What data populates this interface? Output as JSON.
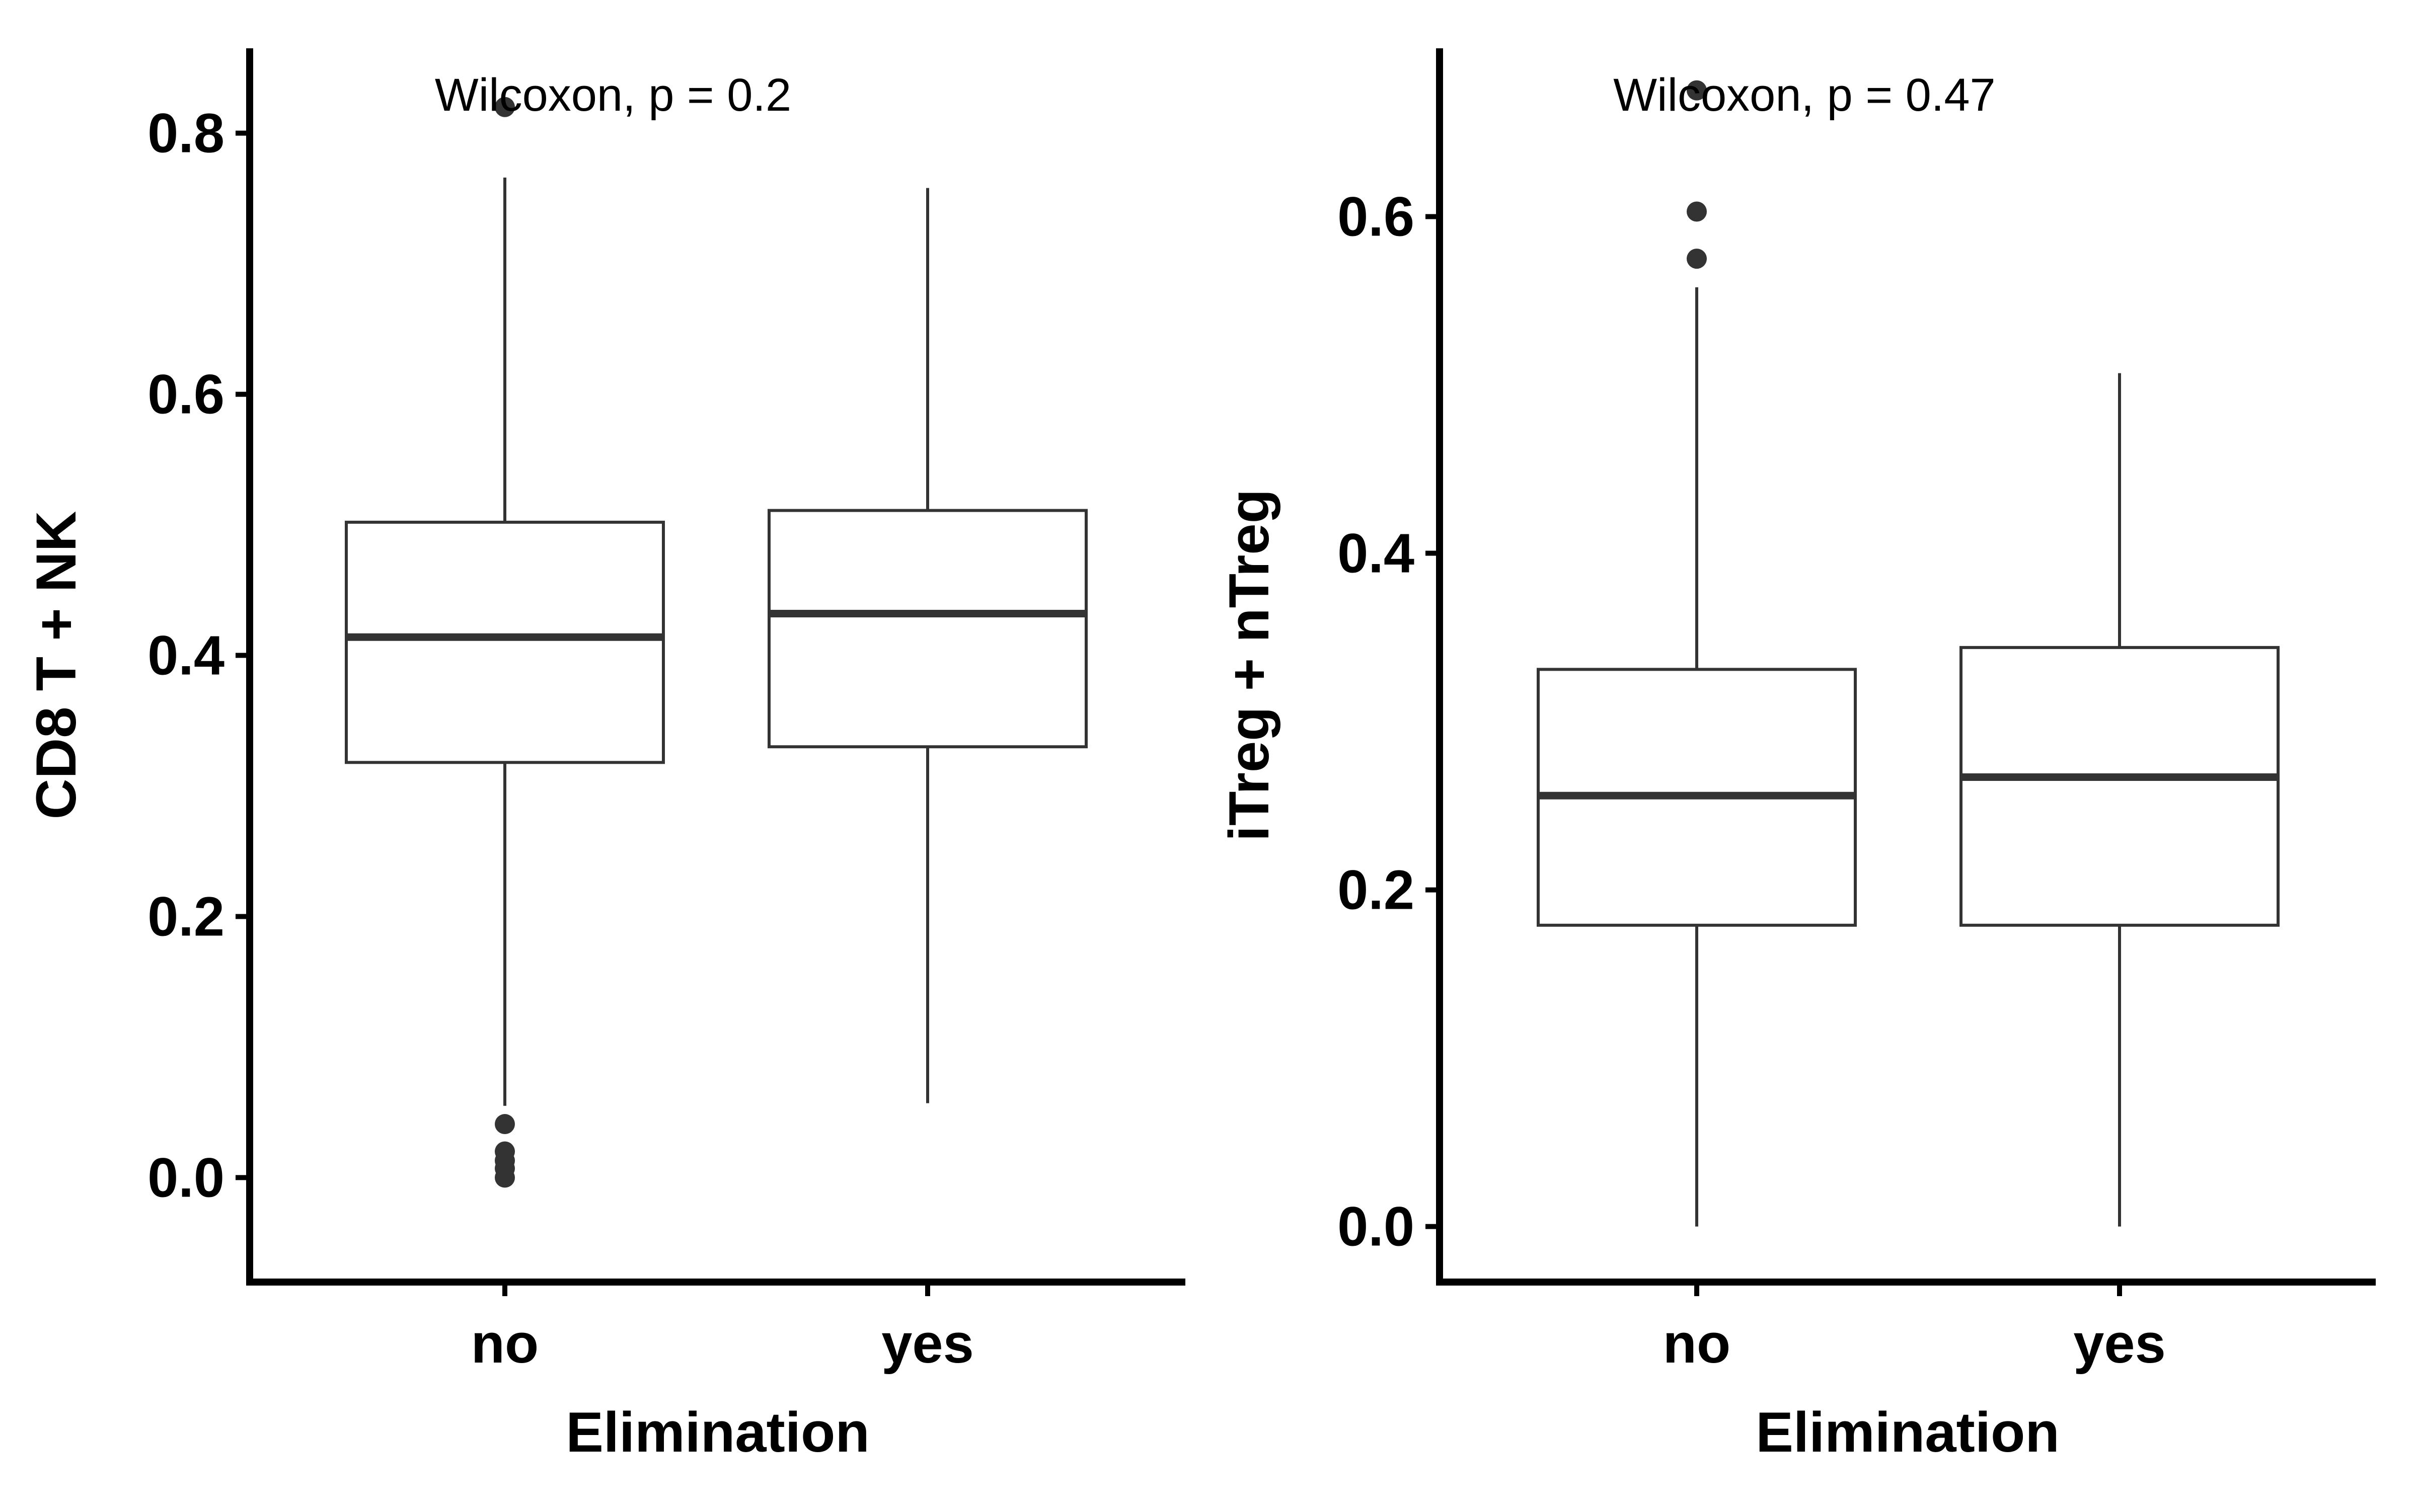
{
  "chart_data": [
    {
      "type": "box",
      "xlabel": "Elimination",
      "ylabel": "CD8 T + NK",
      "annotation": "Wilcoxon, p = 0.2",
      "ylim": [
        -0.08,
        0.865
      ],
      "yticks": [
        0.0,
        0.2,
        0.4,
        0.6,
        0.8
      ],
      "ytick_labels": [
        "0.0",
        "0.2",
        "0.4",
        "0.6",
        "0.8"
      ],
      "categories": [
        "no",
        "yes"
      ],
      "grid": false,
      "boxes": [
        {
          "category": "no",
          "whisker_low": 0.055,
          "q1": 0.318,
          "median": 0.414,
          "q3": 0.502,
          "whisker_high": 0.766,
          "outliers": [
            0.0,
            0.007,
            0.013,
            0.02,
            0.041,
            0.82
          ]
        },
        {
          "category": "yes",
          "whisker_low": 0.057,
          "q1": 0.33,
          "median": 0.432,
          "q3": 0.511,
          "whisker_high": 0.758,
          "outliers": []
        }
      ]
    },
    {
      "type": "box",
      "xlabel": "Elimination",
      "ylabel": "iTreg + nTreg",
      "annotation": "Wilcoxon, p = 0.47",
      "ylim": [
        -0.033,
        0.7
      ],
      "yticks": [
        0.0,
        0.2,
        0.4,
        0.6
      ],
      "ytick_labels": [
        "0.0",
        "0.2",
        "0.4",
        "0.6"
      ],
      "categories": [
        "no",
        "yes"
      ],
      "grid": false,
      "boxes": [
        {
          "category": "no",
          "whisker_low": 0.0,
          "q1": 0.179,
          "median": 0.256,
          "q3": 0.331,
          "whisker_high": 0.558,
          "outliers": [
            0.575,
            0.603,
            0.675
          ]
        },
        {
          "category": "yes",
          "whisker_low": 0.0,
          "q1": 0.179,
          "median": 0.267,
          "q3": 0.344,
          "whisker_high": 0.507,
          "outliers": []
        }
      ]
    }
  ],
  "colors": {
    "box_stroke": "#333333",
    "median": "#333333",
    "outlier": "#333333",
    "axis": "#000000",
    "background": "#ffffff"
  }
}
